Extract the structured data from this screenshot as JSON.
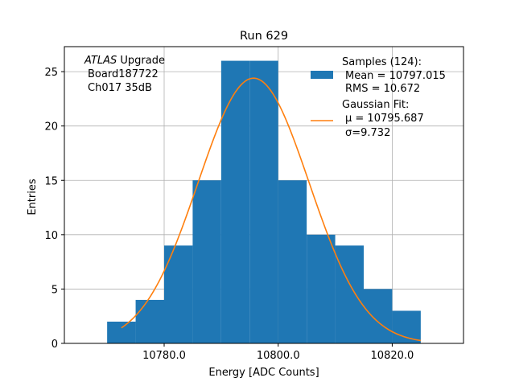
{
  "chart_data": {
    "type": "bar",
    "title": "Run 629",
    "xlabel": "Energy [ADC Counts]",
    "ylabel": "Entries",
    "xlim": [
      10762.5,
      10832.5
    ],
    "ylim": [
      0,
      27.3
    ],
    "xticks": [
      10780,
      10800,
      10820
    ],
    "xtick_labels": [
      "10780.0",
      "10800.0",
      "10820.0"
    ],
    "yticks": [
      0,
      5,
      10,
      15,
      20,
      25
    ],
    "ytick_labels": [
      "0",
      "5",
      "10",
      "15",
      "20",
      "25"
    ],
    "grid": true,
    "bins": [
      {
        "x0": 10770,
        "x1": 10775,
        "count": 2
      },
      {
        "x0": 10775,
        "x1": 10780,
        "count": 4
      },
      {
        "x0": 10780,
        "x1": 10785,
        "count": 9
      },
      {
        "x0": 10785,
        "x1": 10790,
        "count": 15
      },
      {
        "x0": 10790,
        "x1": 10795,
        "count": 26
      },
      {
        "x0": 10795,
        "x1": 10800,
        "count": 26
      },
      {
        "x0": 10800,
        "x1": 10805,
        "count": 15
      },
      {
        "x0": 10805,
        "x1": 10810,
        "count": 10
      },
      {
        "x0": 10810,
        "x1": 10815,
        "count": 9
      },
      {
        "x0": 10815,
        "x1": 10820,
        "count": 5
      },
      {
        "x0": 10820,
        "x1": 10825,
        "count": 3
      }
    ],
    "fit": {
      "mu": 10795.687,
      "sigma": 9.732,
      "amplitude": 24.4,
      "x_range": [
        10772.5,
        10825
      ]
    },
    "annotation": {
      "italic": "ATLAS",
      "rest": " Upgrade",
      "line2": "Board187722",
      "line3": "Ch017 35dB"
    },
    "legend": {
      "placement": "top-right",
      "hist_lines": [
        "Samples (124):",
        "Mean = 10797.015",
        "RMS = 10.672"
      ],
      "fit_lines": [
        "Gaussian Fit:",
        "μ = 10795.687",
        "σ=9.732"
      ]
    },
    "colors": {
      "hist": "#1f77b4",
      "fit": "#ff7f0e",
      "grid": "#b0b0b0"
    }
  }
}
